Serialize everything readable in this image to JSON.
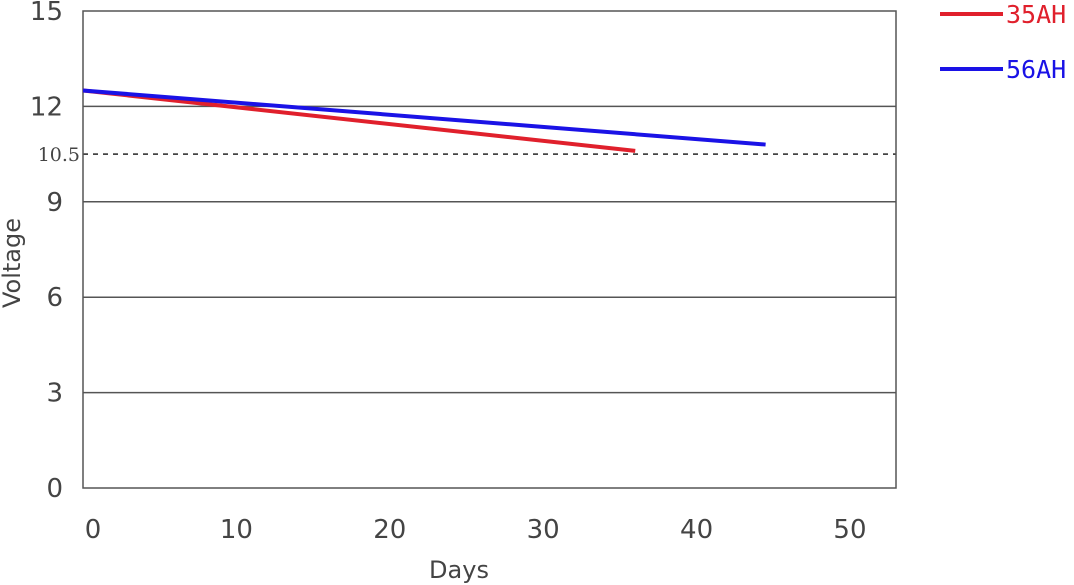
{
  "chart_data": {
    "type": "line",
    "xlabel": "Days",
    "ylabel": "Voltage",
    "xlim": [
      0,
      53
    ],
    "ylim": [
      0,
      15
    ],
    "x_ticks": [
      0,
      10,
      20,
      30,
      40,
      50
    ],
    "y_ticks": [
      0,
      3,
      6,
      9,
      12,
      15
    ],
    "reference_line": {
      "y": 10.5,
      "label": "10.5",
      "style": "dashed"
    },
    "grid": "horizontal",
    "legend_position": "top-right",
    "series": [
      {
        "name": "35AH",
        "color": "#e0202c",
        "x": [
          0,
          36
        ],
        "y": [
          12.5,
          10.6
        ]
      },
      {
        "name": "56AH",
        "color": "#1a12e6",
        "x": [
          0,
          44.5
        ],
        "y": [
          12.5,
          10.8
        ]
      }
    ]
  }
}
